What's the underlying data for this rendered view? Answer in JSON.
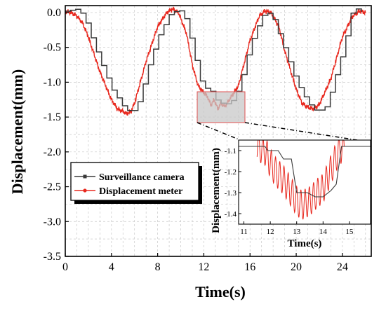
{
  "chart_data": {
    "type": "line",
    "xlabel": "Time(s)",
    "ylabel": "Displacement(mm)",
    "xlim": [
      0,
      26.5
    ],
    "ylim": [
      -3.5,
      0.1
    ],
    "xticks": [
      0,
      4,
      8,
      12,
      16,
      20,
      24
    ],
    "yticks": [
      0.0,
      -0.5,
      -1.0,
      -1.5,
      -2.0,
      -2.5,
      -3.0,
      -3.5
    ],
    "xtick_labels": [
      "0",
      "4",
      "8",
      "12",
      "16",
      "20",
      "24"
    ],
    "ytick_labels": [
      "0.0",
      "-0.5",
      "-1.0",
      "-1.5",
      "-2.0",
      "-2.5",
      "-3.0",
      "-3.5"
    ],
    "grid": true,
    "legend_position": "lower-left",
    "series": [
      {
        "name": "Surveillance camera",
        "color": "#3a3a3a",
        "style": "step",
        "x": [
          0,
          1,
          1.6,
          2,
          3,
          4,
          5,
          5.5,
          6,
          6.5,
          7,
          8,
          9,
          9.8,
          10.4,
          11,
          11.6,
          12,
          12.5,
          13,
          13.5,
          14,
          14.5,
          15,
          16,
          17,
          17.5,
          18,
          19,
          20,
          21,
          21.6,
          22.4,
          23,
          24,
          24.9,
          25.4,
          26
        ],
        "y": [
          0.02,
          0.05,
          -0.05,
          -0.25,
          -0.7,
          -1.1,
          -1.35,
          -1.42,
          -1.4,
          -1.2,
          -0.85,
          -0.35,
          -0.03,
          0.05,
          -0.1,
          -0.5,
          -0.95,
          -1.08,
          -1.1,
          -1.25,
          -1.3,
          -1.31,
          -1.25,
          -1.08,
          -0.45,
          -0.05,
          0.0,
          -0.1,
          -0.55,
          -1.0,
          -1.3,
          -1.4,
          -1.4,
          -1.12,
          -0.55,
          0.1,
          0.02,
          0.0
        ]
      },
      {
        "name": "Displacement meter",
        "color": "#e8281e",
        "style": "line",
        "x": [
          0,
          0.5,
          1,
          1.5,
          2,
          3,
          4,
          4.5,
          5,
          5.3,
          5.7,
          6,
          6.5,
          7,
          8,
          8.8,
          9.3,
          9.8,
          10.5,
          11,
          11.5,
          12,
          12.3,
          12.6,
          12.9,
          13.2,
          13.5,
          13.8,
          14.1,
          14.4,
          15,
          16,
          16.8,
          17.3,
          17.8,
          18.5,
          19,
          20,
          20.5,
          21,
          21.5,
          22,
          23,
          24,
          24.9,
          25.5,
          26
        ],
        "y": [
          0.02,
          0.0,
          -0.05,
          -0.15,
          -0.35,
          -0.85,
          -1.25,
          -1.38,
          -1.42,
          -1.45,
          -1.42,
          -1.3,
          -1.0,
          -0.7,
          -0.2,
          0.0,
          0.05,
          0.0,
          -0.3,
          -0.75,
          -1.05,
          -1.15,
          -1.2,
          -1.33,
          -1.25,
          -1.38,
          -1.3,
          -1.35,
          -1.28,
          -1.2,
          -1.05,
          -0.4,
          -0.05,
          0.02,
          0.0,
          -0.2,
          -0.55,
          -1.1,
          -1.3,
          -1.36,
          -1.38,
          -1.32,
          -0.95,
          -0.35,
          -0.05,
          0.02,
          0.0
        ]
      }
    ],
    "inset": {
      "xlabel": "Time(s)",
      "ylabel": "Displacement(mm)",
      "xlim": [
        10.8,
        15.8
      ],
      "ylim": [
        -1.45,
        -1.05
      ],
      "xticks": [
        11,
        12,
        13,
        14,
        15
      ],
      "yticks": [
        -1.1,
        -1.2,
        -1.3,
        -1.4
      ],
      "xtick_labels": [
        "11",
        "12",
        "13",
        "14",
        "15"
      ],
      "ytick_labels": [
        "-1.1",
        "-1.2",
        "-1.3",
        "-1.4"
      ],
      "series": [
        {
          "name": "Surveillance camera",
          "color": "#3a3a3a",
          "x": [
            10.8,
            11.8,
            11.9,
            12.3,
            12.5,
            12.8,
            13.0,
            13.4,
            13.7,
            14.0,
            14.3,
            14.5,
            14.7,
            15.8
          ],
          "y": [
            -1.08,
            -1.08,
            -1.1,
            -1.1,
            -1.14,
            -1.14,
            -1.3,
            -1.3,
            -1.32,
            -1.32,
            -1.29,
            -1.26,
            -1.08,
            -1.08
          ]
        },
        {
          "name": "Displacement meter",
          "color": "#e8281e",
          "osc": true,
          "x": [
            11.5,
            11.8,
            12.0,
            12.2,
            12.5,
            12.8,
            13.0,
            13.2,
            13.5,
            13.8,
            14.0,
            14.2,
            14.4,
            14.6,
            14.8
          ],
          "y": [
            -1.08,
            -1.1,
            -1.16,
            -1.2,
            -1.24,
            -1.3,
            -1.34,
            -1.36,
            -1.34,
            -1.3,
            -1.28,
            -1.22,
            -1.16,
            -1.1,
            -1.08
          ]
        }
      ]
    }
  }
}
